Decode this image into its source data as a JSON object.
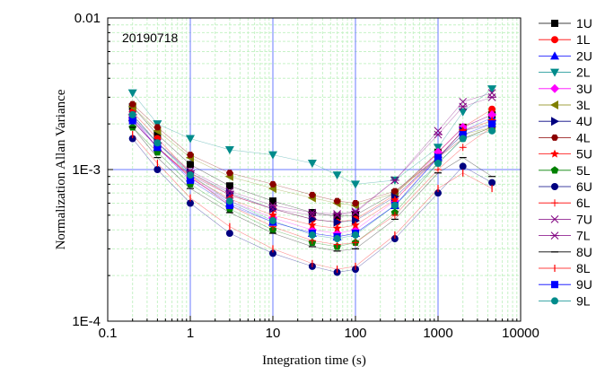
{
  "chart_data": {
    "type": "scatter",
    "annotation": "20190718",
    "xlabel": "Integration time (s)",
    "ylabel": "Normalization Allan Variance",
    "xscale": "log",
    "yscale": "log",
    "xlim": [
      0.1,
      10000
    ],
    "ylim": [
      0.0001,
      0.01
    ],
    "x_tick_labels": [
      "0.1",
      "1",
      "10",
      "100",
      "1000",
      "10000"
    ],
    "y_tick_labels": [
      "1E-4",
      "1E-3",
      "0.01"
    ],
    "grid": true,
    "legend_position": "right",
    "x": [
      0.2,
      0.4,
      1,
      3,
      10,
      30,
      60,
      100,
      300,
      1000,
      2000,
      4500
    ],
    "series": [
      {
        "name": "1U",
        "color": "#000000",
        "marker": "square",
        "values": [
          0.0026,
          0.0017,
          0.00108,
          0.00078,
          0.00062,
          0.00052,
          0.00049,
          0.0005,
          0.0007,
          0.0013,
          0.0019,
          0.0023
        ]
      },
      {
        "name": "1L",
        "color": "#ff0000",
        "marker": "circle",
        "values": [
          0.0024,
          0.0016,
          0.00095,
          0.00068,
          0.00055,
          0.00047,
          0.00045,
          0.00047,
          0.00068,
          0.0013,
          0.0019,
          0.0025
        ]
      },
      {
        "name": "2U",
        "color": "#0000ff",
        "marker": "triangle-up",
        "values": [
          0.0022,
          0.0014,
          0.00088,
          0.0006,
          0.00045,
          0.00038,
          0.00036,
          0.00038,
          0.00058,
          0.0012,
          0.0018,
          0.0022
        ]
      },
      {
        "name": "2L",
        "color": "#008b8b",
        "marker": "triangle-down",
        "values": [
          0.0032,
          0.002,
          0.0016,
          0.00135,
          0.00125,
          0.0011,
          0.00092,
          0.0008,
          0.00085,
          0.0014,
          0.0024,
          0.0034
        ]
      },
      {
        "name": "3U",
        "color": "#ff00ff",
        "marker": "diamond",
        "values": [
          0.0022,
          0.0014,
          0.00088,
          0.00062,
          0.00048,
          0.0004,
          0.00038,
          0.0004,
          0.00062,
          0.0013,
          0.0019,
          0.0023
        ]
      },
      {
        "name": "3L",
        "color": "#808000",
        "marker": "triangle-left",
        "values": [
          0.0026,
          0.0018,
          0.0012,
          0.0009,
          0.00075,
          0.00065,
          0.0006,
          0.00058,
          0.0007,
          0.0012,
          0.0017,
          0.0019
        ]
      },
      {
        "name": "4U",
        "color": "#000080",
        "marker": "triangle-right",
        "values": [
          0.0022,
          0.0015,
          0.00095,
          0.0007,
          0.00055,
          0.00047,
          0.00045,
          0.00046,
          0.00066,
          0.0012,
          0.0018,
          0.002
        ]
      },
      {
        "name": "4L",
        "color": "#8b0000",
        "marker": "hexagon",
        "values": [
          0.0027,
          0.0019,
          0.00125,
          0.00095,
          0.0008,
          0.00068,
          0.00062,
          0.0006,
          0.00072,
          0.0012,
          0.0016,
          0.0019
        ]
      },
      {
        "name": "5U",
        "color": "#ff0000",
        "marker": "star",
        "values": [
          0.0021,
          0.0014,
          0.0009,
          0.00064,
          0.0005,
          0.00043,
          0.00041,
          0.00043,
          0.00063,
          0.0012,
          0.0018,
          0.0021
        ]
      },
      {
        "name": "5L",
        "color": "#008000",
        "marker": "pentagon",
        "values": [
          0.0019,
          0.0013,
          0.0008,
          0.00055,
          0.0004,
          0.00033,
          0.00031,
          0.00033,
          0.00052,
          0.0011,
          0.0016,
          0.0019
        ]
      },
      {
        "name": "6U",
        "color": "#000080",
        "marker": "circle",
        "values": [
          0.0016,
          0.001,
          0.0006,
          0.00038,
          0.00028,
          0.00023,
          0.00021,
          0.00022,
          0.00035,
          0.0007,
          0.00105,
          0.00082
        ]
      },
      {
        "name": "6L",
        "color": "#ff0000",
        "marker": "plus",
        "values": [
          0.0021,
          0.0014,
          0.0009,
          0.00058,
          0.00042,
          0.00034,
          0.00032,
          0.00033,
          0.0005,
          0.001,
          0.0014,
          0.0019
        ]
      },
      {
        "name": "7U",
        "color": "#800080",
        "marker": "x",
        "values": [
          0.0021,
          0.0014,
          0.00092,
          0.00068,
          0.00055,
          0.0005,
          0.0005,
          0.00052,
          0.00085,
          0.0018,
          0.0028,
          0.0032
        ]
      },
      {
        "name": "7L",
        "color": "#800080",
        "marker": "asterisk",
        "values": [
          0.0023,
          0.0015,
          0.00098,
          0.00072,
          0.00058,
          0.00052,
          0.00051,
          0.00053,
          0.00085,
          0.0017,
          0.0026,
          0.003
        ]
      },
      {
        "name": "8U",
        "color": "#000000",
        "marker": "dash",
        "values": [
          0.0019,
          0.0012,
          0.00075,
          0.00052,
          0.00038,
          0.00031,
          0.00029,
          0.0003,
          0.00047,
          0.00095,
          0.0012,
          0.0009
        ]
      },
      {
        "name": "8L",
        "color": "#ff0000",
        "marker": "vline",
        "values": [
          0.0017,
          0.0011,
          0.00065,
          0.00042,
          0.0003,
          0.00024,
          0.00022,
          0.00023,
          0.00037,
          0.00075,
          0.00095,
          0.00075
        ]
      },
      {
        "name": "9U",
        "color": "#0000ff",
        "marker": "square",
        "values": [
          0.0021,
          0.0014,
          0.00085,
          0.00058,
          0.00045,
          0.00038,
          0.00036,
          0.00038,
          0.00058,
          0.0012,
          0.0017,
          0.002
        ]
      },
      {
        "name": "9L",
        "color": "#008b8b",
        "marker": "circle",
        "values": [
          0.0023,
          0.0015,
          0.00092,
          0.00062,
          0.00046,
          0.00037,
          0.00035,
          0.00037,
          0.00058,
          0.0011,
          0.0016,
          0.0018
        ]
      }
    ]
  }
}
